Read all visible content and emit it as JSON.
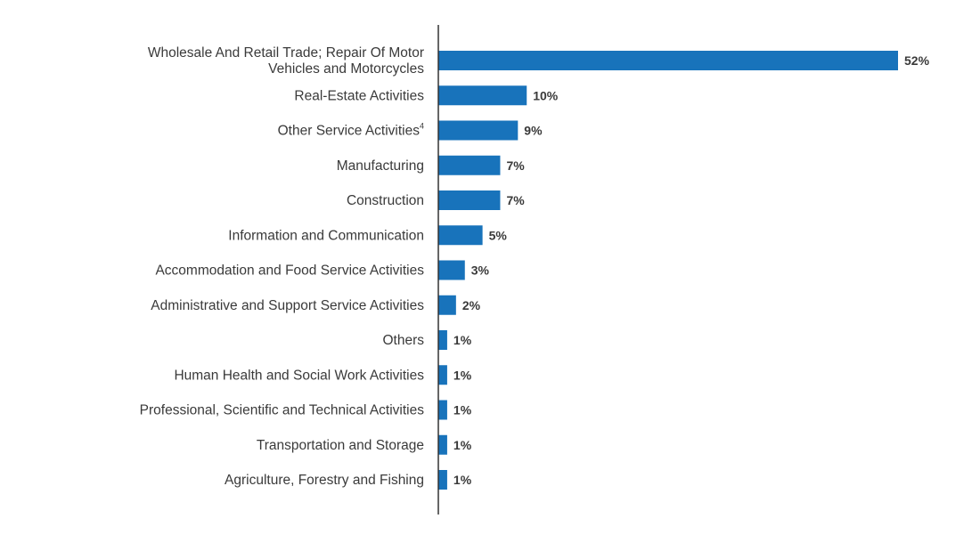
{
  "colors": {
    "bar": "#1873bb",
    "axis": "#333333",
    "text": "#3a3a3a"
  },
  "chart_data": {
    "type": "bar",
    "orientation": "horizontal",
    "categories": [
      [
        "Wholesale And Retail Trade; Repair Of Motor",
        "Vehicles and Motorcycles"
      ],
      [
        "Real-Estate Activities"
      ],
      [
        "Other Service Activities"
      ],
      [
        "Manufacturing"
      ],
      [
        "Construction"
      ],
      [
        "Information and Communication"
      ],
      [
        "Accommodation and Food Service Activities"
      ],
      [
        "Administrative and Support Service Activities"
      ],
      [
        "Others"
      ],
      [
        "Human Health and Social Work Activities"
      ],
      [
        "Professional, Scientific and Technical Activities"
      ],
      [
        "Transportation and Storage"
      ],
      [
        "Agriculture, Forestry and Fishing"
      ]
    ],
    "category_superscripts": [
      "",
      "",
      "4",
      "",
      "",
      "",
      "",
      "",
      "",
      "",
      "",
      "",
      ""
    ],
    "values": [
      52,
      10,
      9,
      7,
      7,
      5,
      3,
      2,
      1,
      1,
      1,
      1,
      1
    ],
    "value_labels": [
      "52%",
      "10%",
      "9%",
      "7%",
      "7%",
      "5%",
      "3%",
      "2%",
      "1%",
      "1%",
      "1%",
      "1%",
      "1%"
    ],
    "xlim": [
      0,
      52
    ],
    "title": "",
    "xlabel": "",
    "ylabel": "",
    "grid": false,
    "legend": "none"
  }
}
